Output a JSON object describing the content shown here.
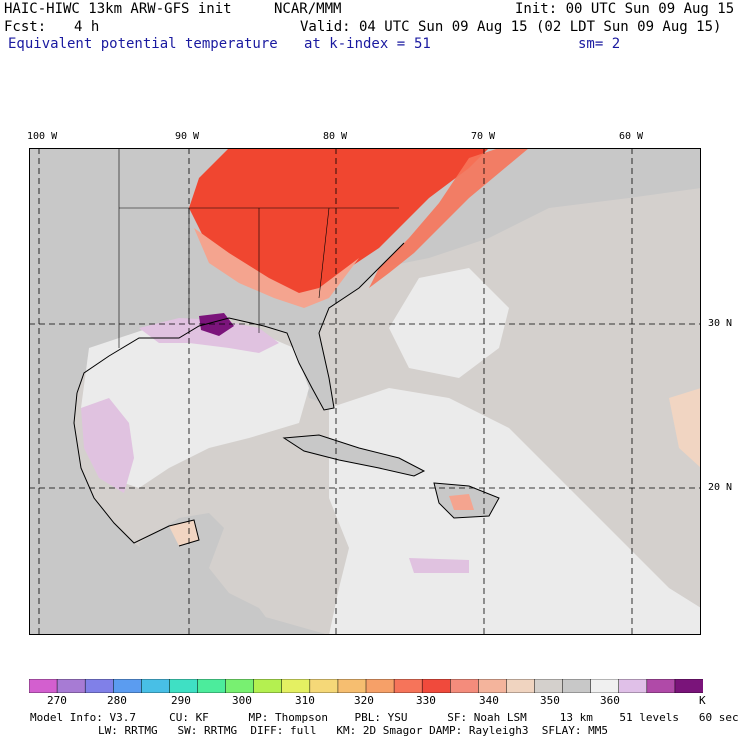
{
  "header": {
    "model": "HAIC-HIWC 13km ARW-GFS init",
    "org": "NCAR/MMM",
    "init": "Init: 00 UTC Sun 09 Aug 15",
    "fcst_label": "Fcst:",
    "fcst_value": "4 h",
    "valid": "Valid: 04 UTC Sun 09 Aug 15 (02 LDT Sun 09 Aug 15)",
    "field": "Equivalent potential temperature",
    "level": "at k-index =",
    "level_value": "51",
    "smooth": "sm= 2"
  },
  "map": {
    "lon_labels": [
      "100 W",
      "90 W",
      "80 W",
      "70 W",
      "60 W"
    ],
    "lat_labels": [
      "30 N",
      "20 N"
    ],
    "colors": {
      "background": "#d4d0cd",
      "gray": "#c8c8c8",
      "light": "#ebebeb",
      "tan": "#f1d5c2",
      "salmon": "#f4a48f",
      "orange": "#f46a4a",
      "red": "#f04630",
      "purple": "#e0c2e0",
      "dark_purple": "#7b147b",
      "coast": "#000000"
    }
  },
  "colorbar": {
    "colors": [
      "#d35fcf",
      "#a77bd4",
      "#8080e8",
      "#5b9cf0",
      "#48bfe6",
      "#3fe0c4",
      "#4cec9c",
      "#78f071",
      "#b4f050",
      "#e4f062",
      "#f5d878",
      "#f6be70",
      "#f6a068",
      "#f6745a",
      "#f04a3c",
      "#f48c7c",
      "#f4b49c",
      "#f0d4c0",
      "#d4d0cc",
      "#c8c8c8",
      "#f0f0f0",
      "#e0c0e8",
      "#b04aa8",
      "#7a147a"
    ],
    "labels": [
      "270",
      "280",
      "290",
      "300",
      "310",
      "320",
      "330",
      "340",
      "350",
      "360"
    ],
    "unit": "K"
  },
  "footer": {
    "line1": "Model Info: V3.7     CU: KF      MP: Thompson    PBL: YSU      SF: Noah LSM     13 km    51 levels   60 sec",
    "line2": "LW: RRTMG   SW: RRTMG  DIFF: full   KM: 2D Smagor DAMP: Rayleigh3  SFLAY: MM5"
  }
}
